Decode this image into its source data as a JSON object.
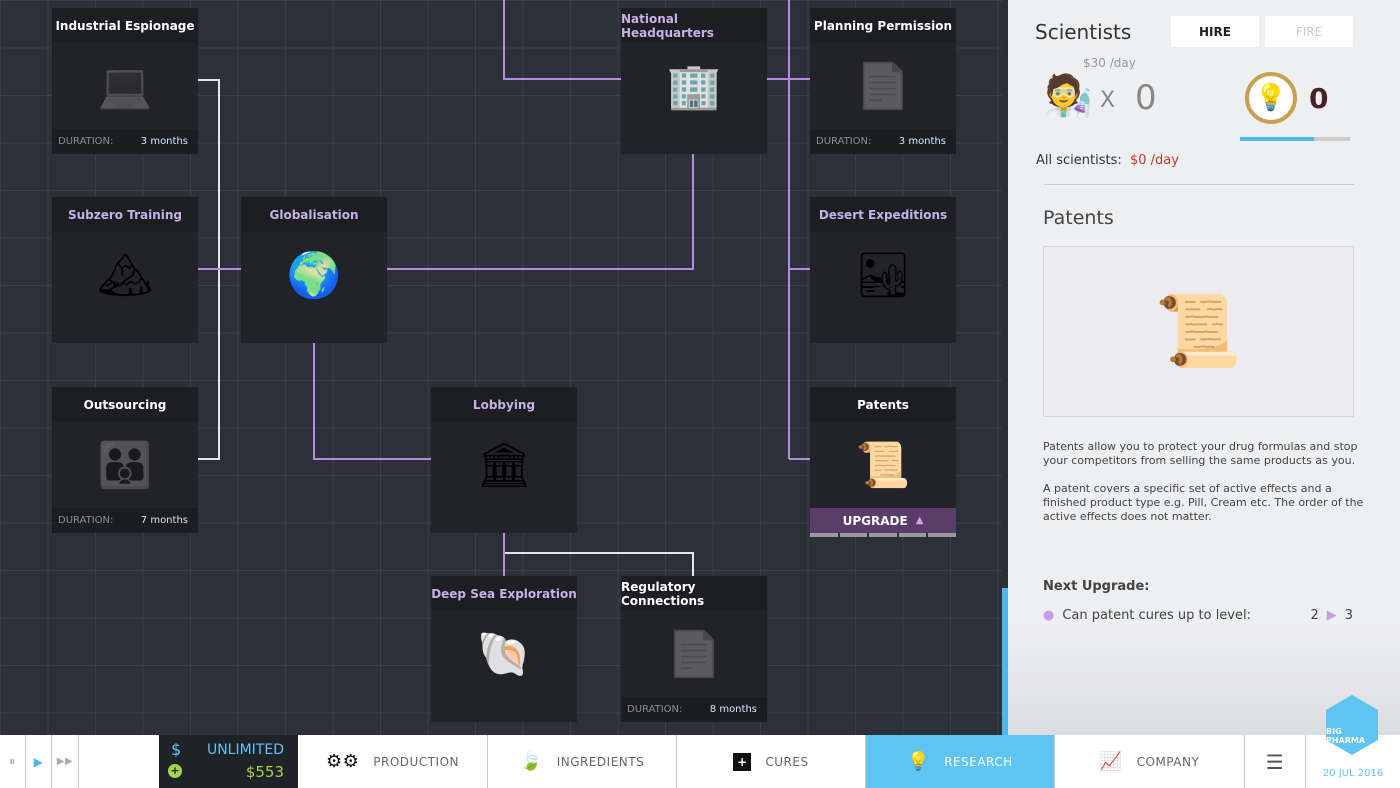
{
  "tree": {
    "duration_label": "DURATION:",
    "upgrade_label": "UPGRADE",
    "cards": [
      {
        "title": "Industrial Espionage",
        "icon": "laptop-icon",
        "glyph": "💻",
        "state": "locked",
        "duration": "3 months"
      },
      {
        "title": "Subzero Training",
        "icon": "snow-island-icon",
        "glyph": "🏔",
        "state": "done"
      },
      {
        "title": "Globalisation",
        "icon": "globe-icon",
        "glyph": "🌍",
        "state": "done"
      },
      {
        "title": "Outsourcing",
        "icon": "people-icon",
        "glyph": "👪",
        "state": "locked",
        "duration": "7 months"
      },
      {
        "title": "Lobbying",
        "icon": "capitol-building-icon",
        "glyph": "🏛",
        "state": "done"
      },
      {
        "title": "National Headquarters",
        "icon": "office-building-icon",
        "glyph": "🏢",
        "state": "done"
      },
      {
        "title": "Planning Permission",
        "icon": "documents-icon",
        "glyph": "📄",
        "state": "locked",
        "duration": "3 months"
      },
      {
        "title": "Desert Expeditions",
        "icon": "desert-island-icon",
        "glyph": "🏜",
        "state": "done"
      },
      {
        "title": "Patents",
        "icon": "patent-certificate-icon",
        "glyph": "📜",
        "state": "upgrade"
      },
      {
        "title": "Deep Sea Exploration",
        "icon": "sea-island-icon",
        "glyph": "🐚",
        "state": "done"
      },
      {
        "title": "Regulatory Connections",
        "icon": "documents-icon",
        "glyph": "📄",
        "state": "locked",
        "duration": "8 months"
      }
    ]
  },
  "scientists": {
    "title": "Scientists",
    "hire": "HIRE",
    "fire": "FIRE",
    "cost": "$30 /day",
    "times": "X",
    "count": "0",
    "research_points": "0",
    "research_progress": 0.67,
    "all_label": "All scientists:",
    "all_value": "$0 /day"
  },
  "detail": {
    "title": "Patents",
    "desc1": "Patents allow you to protect your drug formulas and stop your competitors from selling the same products as you.",
    "desc2": "A patent covers a specific set of active effects and a finished product type e.g. Pill, Cream etc. The order of the active effects does not matter.",
    "next_label": "Next Upgrade:",
    "upgrade_item": "Can patent cures up to level:",
    "from": "2",
    "to": "3"
  },
  "bottom": {
    "money_limit": "UNLIMITED",
    "money": "$553",
    "dollar": "$",
    "nav": [
      {
        "label": "PRODUCTION",
        "icon": "gears-icon"
      },
      {
        "label": "INGREDIENTS",
        "icon": "leaf-icon"
      },
      {
        "label": "CURES",
        "icon": "plus-box-icon"
      },
      {
        "label": "RESEARCH",
        "icon": "lightbulb-icon"
      },
      {
        "label": "COMPANY",
        "icon": "chart-icon"
      }
    ],
    "logo": "BIG PHARMA",
    "date": "20 JUL 2016"
  },
  "colors": {
    "accent": "#5ec4f3",
    "purple": "#b98ae0",
    "cost_red": "#c0392b",
    "money_green": "#a6d14b"
  }
}
